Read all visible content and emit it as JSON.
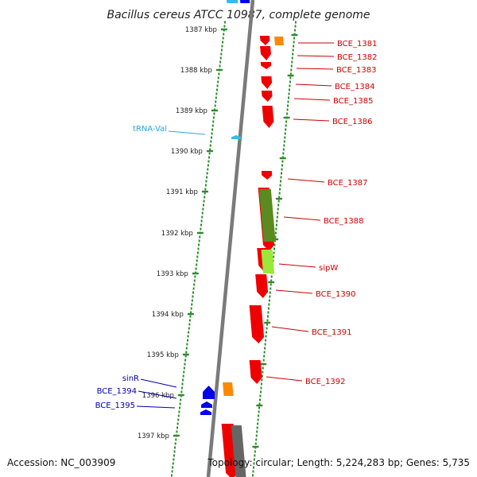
{
  "title": "Bacillus cereus ATCC 10987, complete genome",
  "footer": {
    "accession": "Accession: NC_003909",
    "topology": "Topology: circular; Length: 5,224,283 bp; Genes: 5,735"
  },
  "colors": {
    "backbone": "#7a7a7a",
    "tick": "#2e8b2e",
    "forward": "#ee0000",
    "reverse_other": "#ff8800",
    "reverse_blue": "#0000ee",
    "trna": "#33bbee",
    "olive": "#5a8a20",
    "lime": "#9be83a",
    "gray": "#666666"
  },
  "ticks": [
    {
      "kbp": 1387,
      "label": "1387 kbp"
    },
    {
      "kbp": 1388,
      "label": "1388 kbp"
    },
    {
      "kbp": 1389,
      "label": "1389 kbp"
    },
    {
      "kbp": 1390,
      "label": "1390 kbp"
    },
    {
      "kbp": 1391,
      "label": "1391 kbp"
    },
    {
      "kbp": 1392,
      "label": "1392 kbp"
    },
    {
      "kbp": 1393,
      "label": "1393 kbp"
    },
    {
      "kbp": 1394,
      "label": "1394 kbp"
    },
    {
      "kbp": 1395,
      "label": "1395 kbp"
    },
    {
      "kbp": 1396,
      "label": "1396 kbp"
    },
    {
      "kbp": 1397,
      "label": "1397 kbp"
    }
  ],
  "genes_right": [
    {
      "label": "BCE_1381"
    },
    {
      "label": "BCE_1382"
    },
    {
      "label": "BCE_1383"
    },
    {
      "label": "BCE_1384"
    },
    {
      "label": "BCE_1385"
    },
    {
      "label": "BCE_1386"
    },
    {
      "label": "BCE_1387"
    },
    {
      "label": "BCE_1388"
    },
    {
      "label": "sipW"
    },
    {
      "label": "BCE_1390"
    },
    {
      "label": "BCE_1391"
    },
    {
      "label": "BCE_1392"
    }
  ],
  "genes_left": [
    {
      "label": "tRNA-Val",
      "color": "cyan"
    },
    {
      "label": "sinR",
      "color": "blue"
    },
    {
      "label": "BCE_1394",
      "color": "blue"
    },
    {
      "label": "BCE_1395",
      "color": "blue"
    }
  ]
}
